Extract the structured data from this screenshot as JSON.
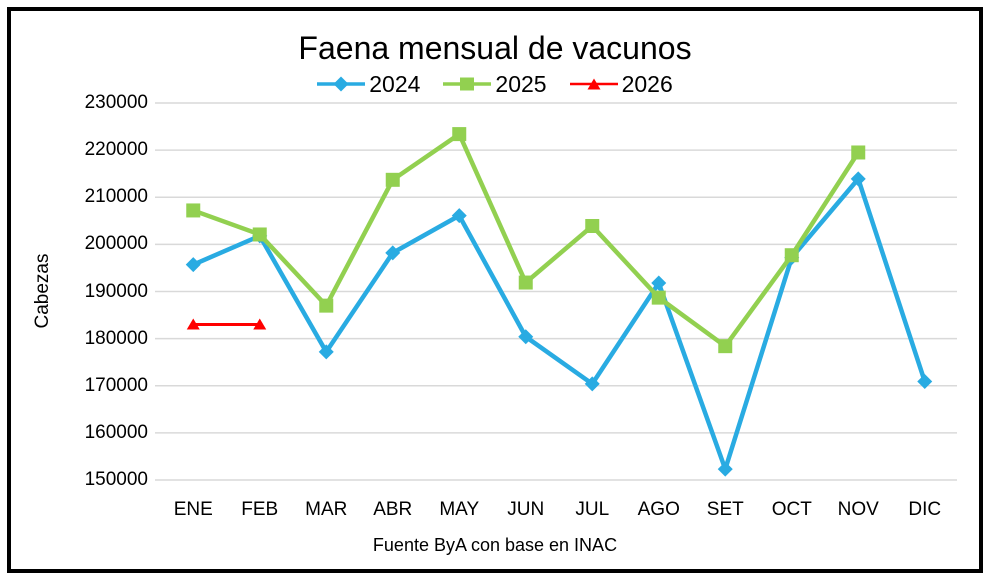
{
  "chart_data": {
    "type": "line",
    "title": "Faena mensual de vacunos",
    "ylabel": "Cabezas",
    "xlabel": "Fuente ByA con base en INAC",
    "categories": [
      "ENE",
      "FEB",
      "MAR",
      "ABR",
      "MAY",
      "JUN",
      "JUL",
      "AGO",
      "SET",
      "OCT",
      "NOV",
      "DIC"
    ],
    "ylim": [
      150000,
      230000
    ],
    "ytick_step": 10000,
    "grid": true,
    "grid_color": "#D9D9D9",
    "legend_position": "top-center",
    "series": [
      {
        "name": "2024",
        "color": "#29ABE2",
        "marker": "diamond",
        "line_width": 4.5,
        "values": [
          195700,
          201800,
          177200,
          198200,
          206100,
          180400,
          170400,
          191800,
          152300,
          197200,
          213900,
          170900
        ]
      },
      {
        "name": "2025",
        "color": "#92D050",
        "marker": "square",
        "line_width": 4.5,
        "values": [
          207200,
          202100,
          187000,
          213700,
          223400,
          191900,
          203900,
          188700,
          178400,
          197700,
          219500,
          null
        ]
      },
      {
        "name": "2026",
        "color": "#FF0000",
        "marker": "triangle",
        "line_width": 3,
        "values": [
          183000,
          183000,
          null,
          null,
          null,
          null,
          null,
          null,
          null,
          null,
          null,
          null
        ]
      }
    ]
  }
}
